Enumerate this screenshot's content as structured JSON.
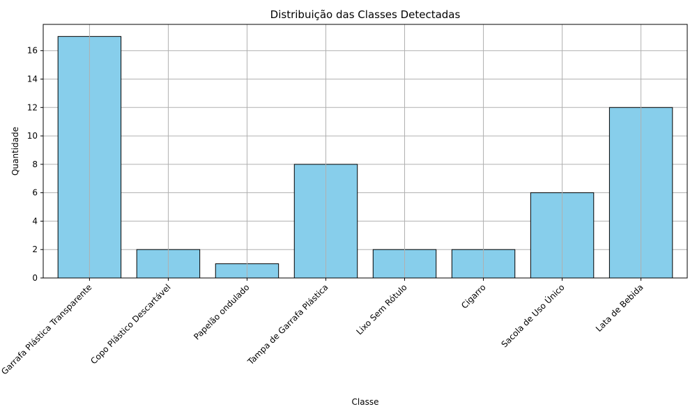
{
  "chart_data": {
    "type": "bar",
    "title": "Distribuição das Classes Detectadas",
    "xlabel": "Classe",
    "ylabel": "Quantidade",
    "categories": [
      "Garrafa Plástica Transparente",
      "Copo Plástico Descartável",
      "Papelão ondulado",
      "Tampa de Garrafa Plástica",
      "Lixo Sem Rótulo",
      "Cigarro",
      "Sacola de Uso Único",
      "Lata de Bebida"
    ],
    "values": [
      17,
      2,
      1,
      8,
      2,
      2,
      6,
      12
    ],
    "ylim": [
      0,
      17.85
    ],
    "yticks": [
      0,
      2,
      4,
      6,
      8,
      10,
      12,
      14,
      16
    ],
    "grid": true,
    "bar_color": "#87CEEB",
    "bar_edge_color": "#000000",
    "grid_color": "#b0b0b0"
  }
}
